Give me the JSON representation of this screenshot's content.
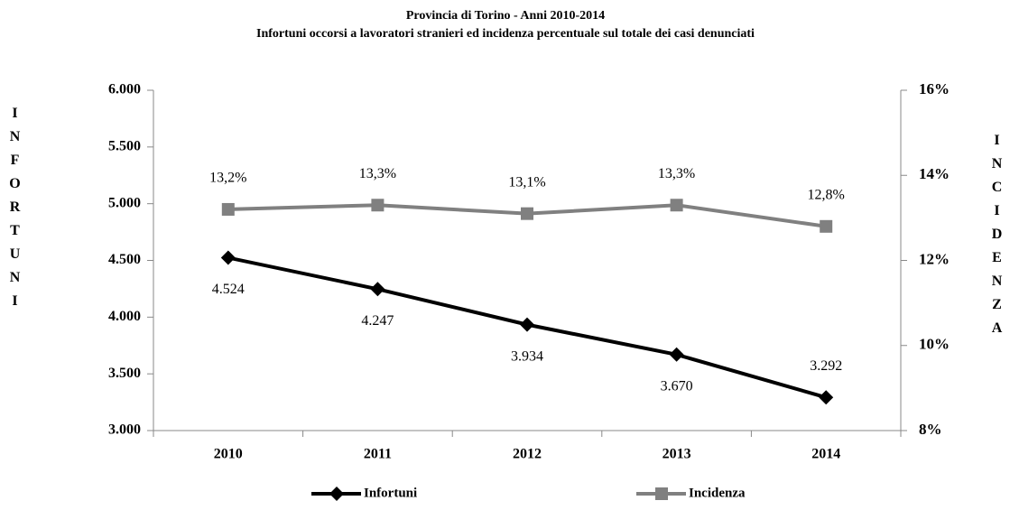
{
  "chart_data": {
    "type": "line",
    "title": "Provincia di Torino - Anni 2010-2014",
    "subtitle": "Infortuni occorsi a lavoratori stranieri ed incidenza percentuale sul totale dei casi denunciati",
    "y_label": "INFORTUNI",
    "y2_label": "INCIDENZA",
    "categories": [
      "2010",
      "2011",
      "2012",
      "2013",
      "2014"
    ],
    "series": [
      {
        "name": "Infortuni",
        "color": "#000000",
        "marker": "diamond",
        "values": [
          4524,
          4247,
          3934,
          3670,
          3292
        ],
        "value_labels": [
          "4.524",
          "4.247",
          "3.934",
          "3.670",
          "3.292"
        ]
      },
      {
        "name": "Incidenza",
        "color": "#808080",
        "marker": "square",
        "axis": "y2",
        "values": [
          13.2,
          13.3,
          13.1,
          13.3,
          12.8
        ],
        "value_labels": [
          "13,2%",
          "13,3%",
          "13,1%",
          "13,3%",
          "12,8%"
        ]
      }
    ],
    "ylim": [
      3000,
      6000
    ],
    "yticks": [
      {
        "value": 3000,
        "label": "3.000"
      },
      {
        "value": 3500,
        "label": "3.500"
      },
      {
        "value": 4000,
        "label": "4.000"
      },
      {
        "value": 4500,
        "label": "4.500"
      },
      {
        "value": 5000,
        "label": "5.000"
      },
      {
        "value": 5500,
        "label": "5.500"
      },
      {
        "value": 6000,
        "label": "6.000"
      }
    ],
    "y2lim": [
      8,
      16
    ],
    "y2ticks": [
      {
        "value": 8,
        "label": "8%"
      },
      {
        "value": 10,
        "label": "10%"
      },
      {
        "value": 12,
        "label": "12%"
      },
      {
        "value": 14,
        "label": "14%"
      },
      {
        "value": 16,
        "label": "16%"
      }
    ],
    "grid": false,
    "legend": "bottom"
  }
}
